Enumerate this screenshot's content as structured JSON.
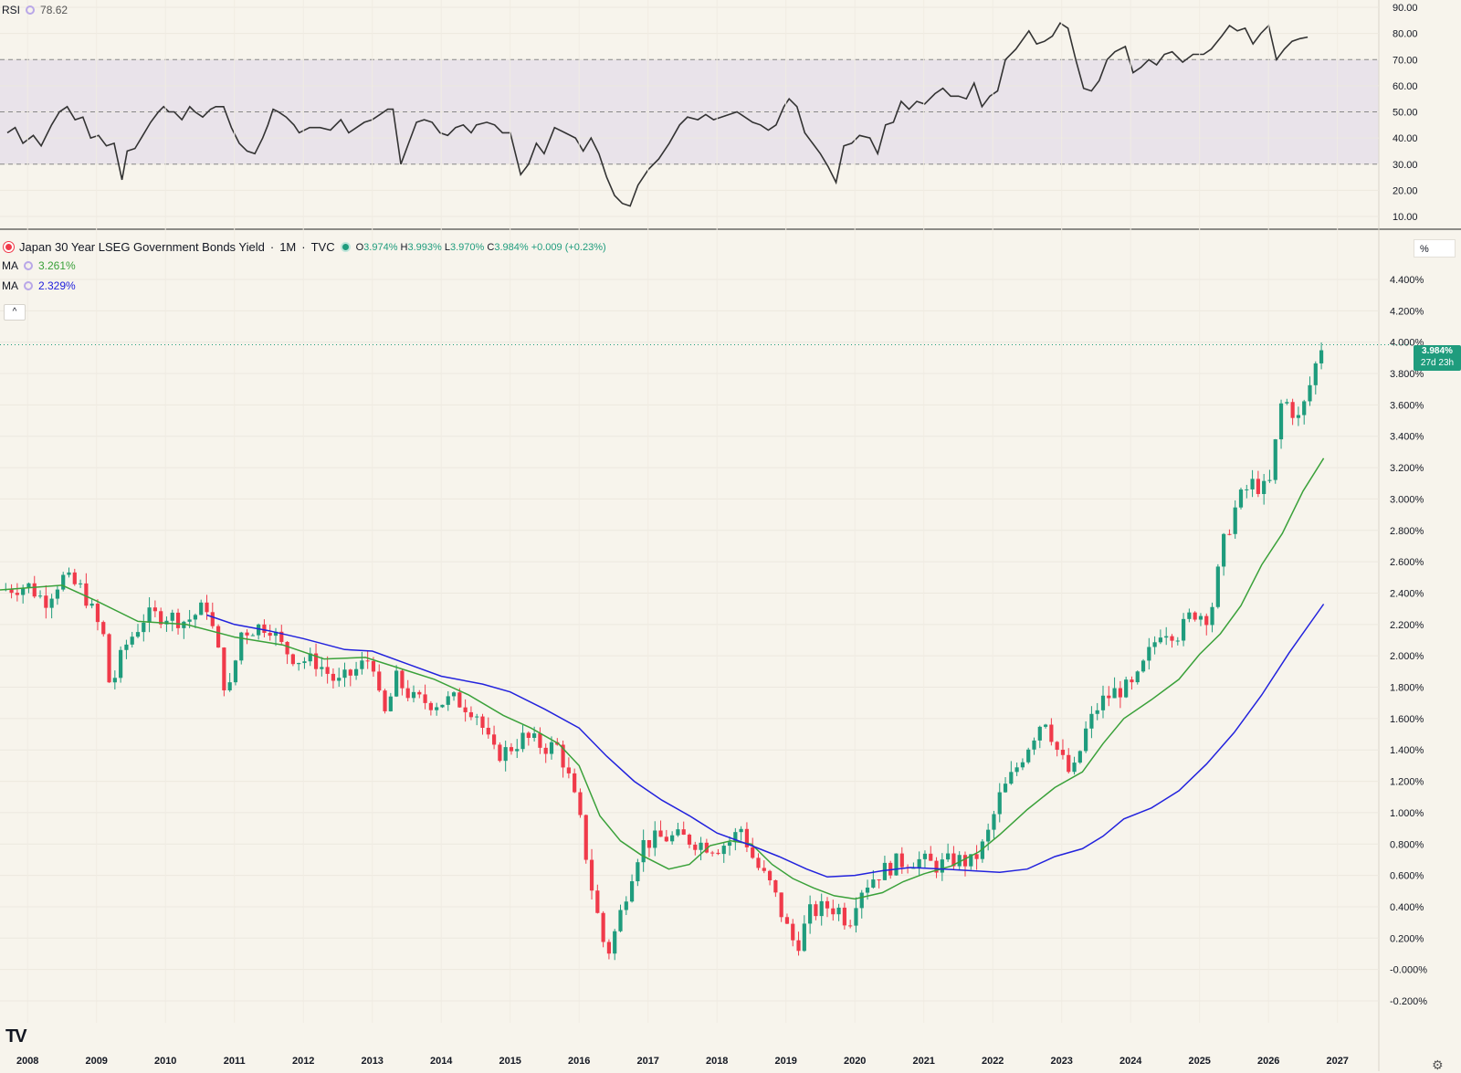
{
  "rsi": {
    "label": "RSI",
    "value": "78.62",
    "levels": {
      "upper": 70,
      "mid": 50,
      "lower": 30
    },
    "ticks": [
      "90.00",
      "80.00",
      "70.00",
      "60.00",
      "50.00",
      "40.00",
      "30.00",
      "20.00",
      "10.00"
    ],
    "series": [
      [
        2008.0,
        42
      ],
      [
        2008.15,
        44
      ],
      [
        2008.3,
        38
      ],
      [
        2008.5,
        41
      ],
      [
        2008.65,
        37
      ],
      [
        2008.85,
        45
      ],
      [
        2009.0,
        50
      ],
      [
        2009.15,
        52
      ],
      [
        2009.3,
        47
      ],
      [
        2009.45,
        48
      ],
      [
        2009.6,
        40
      ],
      [
        2009.75,
        41
      ],
      [
        2009.9,
        37
      ],
      [
        2010.05,
        38
      ],
      [
        2010.2,
        24
      ],
      [
        2010.3,
        35
      ],
      [
        2010.45,
        36
      ],
      [
        2010.6,
        41
      ],
      [
        2010.75,
        46
      ],
      [
        2010.9,
        50
      ],
      [
        2011.0,
        52
      ],
      [
        2011.1,
        50
      ],
      [
        2011.2,
        50
      ],
      [
        2011.35,
        47
      ],
      [
        2011.5,
        52
      ],
      [
        2011.6,
        50
      ],
      [
        2011.75,
        48
      ],
      [
        2011.9,
        51
      ],
      [
        2012.0,
        52
      ],
      [
        2012.15,
        52
      ],
      [
        2012.3,
        44
      ],
      [
        2012.45,
        38
      ],
      [
        2012.6,
        35
      ],
      [
        2012.75,
        34
      ],
      [
        2012.9,
        40
      ],
      [
        2013.0,
        45
      ],
      [
        2013.1,
        51
      ],
      [
        2013.2,
        50
      ],
      [
        2013.35,
        48
      ],
      [
        2013.5,
        45
      ],
      [
        2013.6,
        42
      ],
      [
        2013.8,
        44
      ],
      [
        2014.0,
        44
      ],
      [
        2014.2,
        43
      ],
      [
        2014.4,
        47
      ],
      [
        2014.55,
        42
      ],
      [
        2014.7,
        44
      ],
      [
        2014.85,
        46
      ],
      [
        2015.0,
        47
      ],
      [
        2015.15,
        49
      ],
      [
        2015.3,
        51
      ],
      [
        2015.4,
        51
      ],
      [
        2015.55,
        30
      ],
      [
        2015.7,
        38
      ],
      [
        2015.85,
        46
      ],
      [
        2016.0,
        47
      ],
      [
        2016.15,
        46
      ],
      [
        2016.3,
        42
      ],
      [
        2016.45,
        41
      ],
      [
        2016.6,
        44
      ],
      [
        2016.75,
        45
      ],
      [
        2016.9,
        42
      ],
      [
        2017.0,
        45
      ],
      [
        2017.2,
        46
      ],
      [
        2017.35,
        45
      ],
      [
        2017.5,
        42
      ],
      [
        2017.65,
        42
      ],
      [
        2017.85,
        26
      ],
      [
        2018.0,
        30
      ],
      [
        2018.15,
        38
      ],
      [
        2018.3,
        34
      ],
      [
        2018.5,
        44
      ],
      [
        2018.7,
        42
      ],
      [
        2018.9,
        40
      ],
      [
        2019.05,
        35
      ],
      [
        2019.2,
        40
      ],
      [
        2019.35,
        34
      ],
      [
        2019.5,
        25
      ],
      [
        2019.65,
        18
      ],
      [
        2019.8,
        15
      ],
      [
        2019.95,
        14
      ],
      [
        2020.1,
        22
      ],
      [
        2020.3,
        28
      ],
      [
        2020.5,
        32
      ],
      [
        2020.7,
        38
      ],
      [
        2020.9,
        45
      ],
      [
        2021.05,
        48
      ],
      [
        2021.25,
        47
      ],
      [
        2021.4,
        49
      ],
      [
        2021.55,
        47
      ],
      [
        2021.7,
        48
      ],
      [
        2021.85,
        49
      ],
      [
        2022.0,
        50
      ],
      [
        2022.15,
        48
      ],
      [
        2022.3,
        46
      ],
      [
        2022.45,
        45
      ],
      [
        2022.6,
        43
      ],
      [
        2022.75,
        45
      ],
      [
        2022.9,
        52
      ],
      [
        2023.0,
        55
      ],
      [
        2023.15,
        52
      ],
      [
        2023.3,
        42
      ],
      [
        2023.45,
        38
      ],
      [
        2023.6,
        34
      ],
      [
        2023.75,
        29
      ],
      [
        2023.9,
        23
      ],
      [
        2024.05,
        37
      ],
      [
        2024.2,
        38
      ],
      [
        2024.35,
        41
      ],
      [
        2024.55,
        40
      ],
      [
        2024.7,
        34
      ],
      [
        2024.85,
        45
      ],
      [
        2025.0,
        46
      ],
      [
        2025.15,
        54
      ],
      [
        2025.3,
        51
      ],
      [
        2025.45,
        54
      ],
      [
        2025.6,
        53
      ],
      [
        2025.8,
        57
      ],
      [
        2025.95,
        59
      ],
      [
        2026.1,
        56
      ],
      [
        2026.25,
        56
      ],
      [
        2026.4,
        55
      ],
      [
        2026.55,
        61
      ],
      [
        2026.7,
        52
      ],
      [
        2026.85,
        56
      ],
      [
        2027.0,
        58
      ],
      [
        2027.15,
        70
      ],
      [
        2027.35,
        74
      ],
      [
        2027.6,
        81
      ],
      [
        2027.75,
        76
      ],
      [
        2027.9,
        77
      ],
      [
        2028.05,
        79
      ],
      [
        2028.2,
        84
      ],
      [
        2028.35,
        82
      ],
      [
        2028.5,
        70
      ],
      [
        2028.65,
        59
      ],
      [
        2028.8,
        58
      ],
      [
        2028.95,
        62
      ],
      [
        2029.1,
        70
      ],
      [
        2029.25,
        73
      ],
      [
        2029.45,
        75
      ],
      [
        2029.6,
        65
      ],
      [
        2029.75,
        67
      ],
      [
        2029.9,
        70
      ],
      [
        2030.05,
        68
      ],
      [
        2030.2,
        72
      ],
      [
        2030.35,
        73
      ],
      [
        2030.55,
        69
      ],
      [
        2030.75,
        72
      ],
      [
        2030.95,
        72
      ],
      [
        2031.1,
        74
      ],
      [
        2031.3,
        79
      ],
      [
        2031.45,
        83
      ],
      [
        2031.6,
        81
      ],
      [
        2031.75,
        82
      ],
      [
        2031.9,
        76
      ],
      [
        2032.05,
        80
      ],
      [
        2032.2,
        83
      ],
      [
        2032.35,
        70
      ],
      [
        2032.5,
        74
      ],
      [
        2032.65,
        77
      ],
      [
        2032.8,
        78
      ],
      [
        2032.95,
        78.6
      ]
    ]
  },
  "main": {
    "title": "Japan 30 Year LSEG Government Bonds Yield",
    "interval": "1M",
    "source": "TVC",
    "ohlc": {
      "o_label": "O",
      "o": "3.974%",
      "h_label": "H",
      "h": "3.993%",
      "l_label": "L",
      "l": "3.970%",
      "c_label": "C",
      "c": "3.984%",
      "change": "+0.009 (+0.23%)"
    },
    "ma1": {
      "label": "MA",
      "value": "3.261%",
      "color": "#3aa13a"
    },
    "ma2": {
      "label": "MA",
      "value": "2.329%",
      "color": "#2222dd"
    },
    "last_price": "3.984%",
    "countdown": "27d 23h",
    "unit_label": "%",
    "collapse_icon": "chevron-up-icon",
    "colors": {
      "up": "#1f9c7d",
      "down": "#f03a4a",
      "rsi": "#333333"
    }
  },
  "chart_data": {
    "type": "candlestick",
    "title": "Japan 30 Year LSEG Government Bonds Yield · 1M · TVC",
    "ylabel": "%",
    "yticks": [
      "4.400%",
      "4.200%",
      "4.000%",
      "3.800%",
      "3.600%",
      "3.400%",
      "3.200%",
      "3.000%",
      "2.800%",
      "2.600%",
      "2.400%",
      "2.200%",
      "2.000%",
      "1.800%",
      "1.600%",
      "1.400%",
      "1.200%",
      "1.000%",
      "0.800%",
      "0.600%",
      "0.400%",
      "0.200%",
      "-0.000%",
      "-0.200%"
    ],
    "ylim": [
      -0.2,
      4.4
    ],
    "xticks": [
      "2008",
      "2009",
      "2010",
      "2011",
      "2012",
      "2013",
      "2014",
      "2015",
      "2016",
      "2017",
      "2018",
      "2019",
      "2020",
      "2021",
      "2022",
      "2023",
      "2024",
      "2025",
      "2026",
      "2027"
    ],
    "xlim": [
      2007.6,
      2027.6
    ],
    "close_path": [
      [
        2007.6,
        2.42
      ],
      [
        2008.0,
        2.45
      ],
      [
        2008.25,
        2.35
      ],
      [
        2008.5,
        2.5
      ],
      [
        2008.8,
        2.42
      ],
      [
        2009.1,
        2.12
      ],
      [
        2009.2,
        1.78
      ],
      [
        2009.4,
        2.05
      ],
      [
        2009.7,
        2.25
      ],
      [
        2010.0,
        2.26
      ],
      [
        2010.3,
        2.22
      ],
      [
        2010.6,
        2.32
      ],
      [
        2010.75,
        2.05
      ],
      [
        2010.9,
        1.72
      ],
      [
        2011.1,
        2.15
      ],
      [
        2011.3,
        2.18
      ],
      [
        2011.5,
        2.2
      ],
      [
        2011.7,
        2.05
      ],
      [
        2011.9,
        1.98
      ],
      [
        2012.2,
        1.96
      ],
      [
        2012.5,
        1.82
      ],
      [
        2012.8,
        1.92
      ],
      [
        2013.0,
        2.0
      ],
      [
        2013.15,
        1.58
      ],
      [
        2013.35,
        1.85
      ],
      [
        2013.6,
        1.72
      ],
      [
        2013.9,
        1.7
      ],
      [
        2014.2,
        1.72
      ],
      [
        2014.5,
        1.65
      ],
      [
        2014.75,
        1.38
      ],
      [
        2014.9,
        1.38
      ],
      [
        2015.2,
        1.48
      ],
      [
        2015.5,
        1.42
      ],
      [
        2015.7,
        1.42
      ],
      [
        2015.85,
        1.22
      ],
      [
        2016.0,
        0.98
      ],
      [
        2016.2,
        0.48
      ],
      [
        2016.4,
        0.08
      ],
      [
        2016.55,
        0.28
      ],
      [
        2016.75,
        0.6
      ],
      [
        2016.9,
        0.8
      ],
      [
        2017.2,
        0.84
      ],
      [
        2017.5,
        0.84
      ],
      [
        2017.8,
        0.8
      ],
      [
        2018.0,
        0.78
      ],
      [
        2018.2,
        0.82
      ],
      [
        2018.35,
        0.9
      ],
      [
        2018.55,
        0.68
      ],
      [
        2018.8,
        0.52
      ],
      [
        2019.0,
        0.28
      ],
      [
        2019.15,
        0.14
      ],
      [
        2019.35,
        0.36
      ],
      [
        2019.6,
        0.4
      ],
      [
        2019.8,
        0.38
      ],
      [
        2019.9,
        0.28
      ],
      [
        2020.05,
        0.5
      ],
      [
        2020.3,
        0.6
      ],
      [
        2020.6,
        0.68
      ],
      [
        2020.9,
        0.7
      ],
      [
        2021.2,
        0.66
      ],
      [
        2021.45,
        0.7
      ],
      [
        2021.7,
        0.68
      ],
      [
        2021.9,
        0.82
      ],
      [
        2022.1,
        1.1
      ],
      [
        2022.3,
        1.25
      ],
      [
        2022.5,
        1.42
      ],
      [
        2022.75,
        1.62
      ],
      [
        2022.95,
        1.38
      ],
      [
        2023.15,
        1.22
      ],
      [
        2023.35,
        1.52
      ],
      [
        2023.55,
        1.7
      ],
      [
        2023.8,
        1.78
      ],
      [
        2024.05,
        1.8
      ],
      [
        2024.25,
        2.0
      ],
      [
        2024.45,
        2.18
      ],
      [
        2024.7,
        2.14
      ],
      [
        2024.9,
        2.28
      ],
      [
        2025.15,
        2.25
      ],
      [
        2025.35,
        2.72
      ],
      [
        2025.55,
        2.98
      ],
      [
        2025.75,
        3.1
      ],
      [
        2026.0,
        3.05
      ],
      [
        2026.2,
        3.65
      ],
      [
        2026.45,
        3.5
      ],
      [
        2026.65,
        3.8
      ],
      [
        2026.75,
        3.97
      ],
      [
        2026.8,
        3.98
      ]
    ],
    "series": [
      {
        "name": "MA",
        "values": [
          [
            2007.6,
            2.42
          ],
          [
            2008.5,
            2.45
          ],
          [
            2009.0,
            2.35
          ],
          [
            2009.6,
            2.22
          ],
          [
            2010.3,
            2.2
          ],
          [
            2011.0,
            2.12
          ],
          [
            2011.7,
            2.07
          ],
          [
            2012.3,
            1.98
          ],
          [
            2012.9,
            1.99
          ],
          [
            2013.4,
            1.92
          ],
          [
            2013.9,
            1.85
          ],
          [
            2014.4,
            1.75
          ],
          [
            2014.9,
            1.62
          ],
          [
            2015.3,
            1.54
          ],
          [
            2015.7,
            1.44
          ],
          [
            2016.0,
            1.3
          ],
          [
            2016.3,
            0.98
          ],
          [
            2016.6,
            0.82
          ],
          [
            2016.9,
            0.73
          ],
          [
            2017.3,
            0.64
          ],
          [
            2017.6,
            0.67
          ],
          [
            2017.9,
            0.79
          ],
          [
            2018.2,
            0.82
          ],
          [
            2018.5,
            0.8
          ],
          [
            2018.8,
            0.67
          ],
          [
            2019.1,
            0.58
          ],
          [
            2019.4,
            0.52
          ],
          [
            2019.7,
            0.47
          ],
          [
            2020.0,
            0.45
          ],
          [
            2020.4,
            0.49
          ],
          [
            2020.7,
            0.56
          ],
          [
            2021.0,
            0.61
          ],
          [
            2021.4,
            0.66
          ],
          [
            2021.8,
            0.75
          ],
          [
            2022.1,
            0.86
          ],
          [
            2022.5,
            1.02
          ],
          [
            2022.9,
            1.16
          ],
          [
            2023.3,
            1.26
          ],
          [
            2023.6,
            1.44
          ],
          [
            2023.9,
            1.6
          ],
          [
            2024.3,
            1.72
          ],
          [
            2024.7,
            1.85
          ],
          [
            2025.0,
            2.01
          ],
          [
            2025.3,
            2.14
          ],
          [
            2025.6,
            2.32
          ],
          [
            2025.9,
            2.58
          ],
          [
            2026.2,
            2.78
          ],
          [
            2026.5,
            3.05
          ],
          [
            2026.8,
            3.26
          ]
        ]
      },
      {
        "name": "MA",
        "values": [
          [
            2010.6,
            2.26
          ],
          [
            2011.0,
            2.2
          ],
          [
            2011.5,
            2.16
          ],
          [
            2012.0,
            2.11
          ],
          [
            2012.6,
            2.04
          ],
          [
            2013.0,
            2.03
          ],
          [
            2013.5,
            1.95
          ],
          [
            2014.0,
            1.87
          ],
          [
            2014.6,
            1.82
          ],
          [
            2015.0,
            1.77
          ],
          [
            2015.5,
            1.66
          ],
          [
            2016.0,
            1.54
          ],
          [
            2016.4,
            1.36
          ],
          [
            2016.8,
            1.2
          ],
          [
            2017.2,
            1.08
          ],
          [
            2017.6,
            0.98
          ],
          [
            2018.0,
            0.87
          ],
          [
            2018.5,
            0.79
          ],
          [
            2018.9,
            0.72
          ],
          [
            2019.3,
            0.64
          ],
          [
            2019.6,
            0.59
          ],
          [
            2020.0,
            0.6
          ],
          [
            2020.4,
            0.63
          ],
          [
            2020.8,
            0.65
          ],
          [
            2021.3,
            0.64
          ],
          [
            2021.7,
            0.63
          ],
          [
            2022.1,
            0.62
          ],
          [
            2022.5,
            0.64
          ],
          [
            2022.9,
            0.72
          ],
          [
            2023.3,
            0.77
          ],
          [
            2023.6,
            0.85
          ],
          [
            2023.9,
            0.96
          ],
          [
            2024.3,
            1.03
          ],
          [
            2024.7,
            1.14
          ],
          [
            2025.1,
            1.31
          ],
          [
            2025.5,
            1.51
          ],
          [
            2025.9,
            1.75
          ],
          [
            2026.3,
            2.02
          ],
          [
            2026.8,
            2.33
          ]
        ]
      }
    ]
  }
}
